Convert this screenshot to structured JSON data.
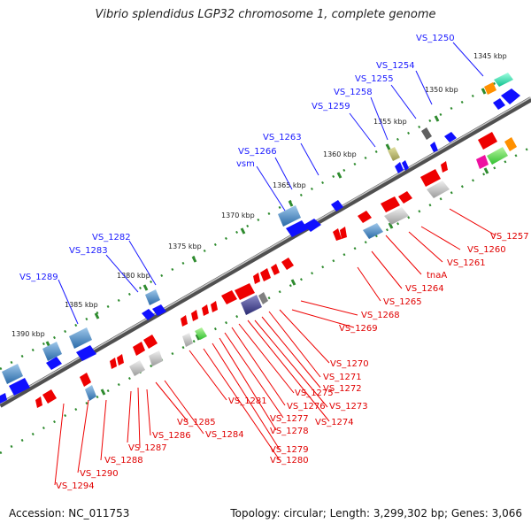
{
  "title": "Vibrio splendidus LGP32 chromosome 1, complete genome",
  "accession": "Accession: NC_011753",
  "summary": "Topology: circular; Length: 3,299,302 bp; Genes: 3,066",
  "scale_labels": [
    "1345 kbp",
    "1350 kbp",
    "1355 kbp",
    "1360 kbp",
    "1365 kbp",
    "1370 kbp",
    "1375 kbp",
    "1380 kbp",
    "1385 kbp",
    "1390 kbp"
  ],
  "upper_labels": [
    "VS_1250",
    "VS_1254",
    "VS_1255",
    "VS_1258",
    "VS_1259",
    "VS_1263",
    "VS_1266",
    "vsm",
    "VS_1282",
    "VS_1283",
    "VS_1289"
  ],
  "lower_labels": [
    "VS_1257",
    "VS_1260",
    "VS_1261",
    "tnaA",
    "VS_1264",
    "VS_1265",
    "VS_1268",
    "VS_1269",
    "VS_1270",
    "VS_1271",
    "VS_1272",
    "VS_1273",
    "VS_1274",
    "VS_1275",
    "VS_1276",
    "VS_1277",
    "VS_1278",
    "VS_1279",
    "VS_1280",
    "VS_1281",
    "VS_1284",
    "VS_1285",
    "VS_1286",
    "VS_1287",
    "VS_1288",
    "VS_1290",
    "VS_1294"
  ],
  "colors": {
    "forward": "#0000ee",
    "reverse": "#ee0000",
    "backbone": "#808080",
    "ticks": "#2e8b2e"
  }
}
